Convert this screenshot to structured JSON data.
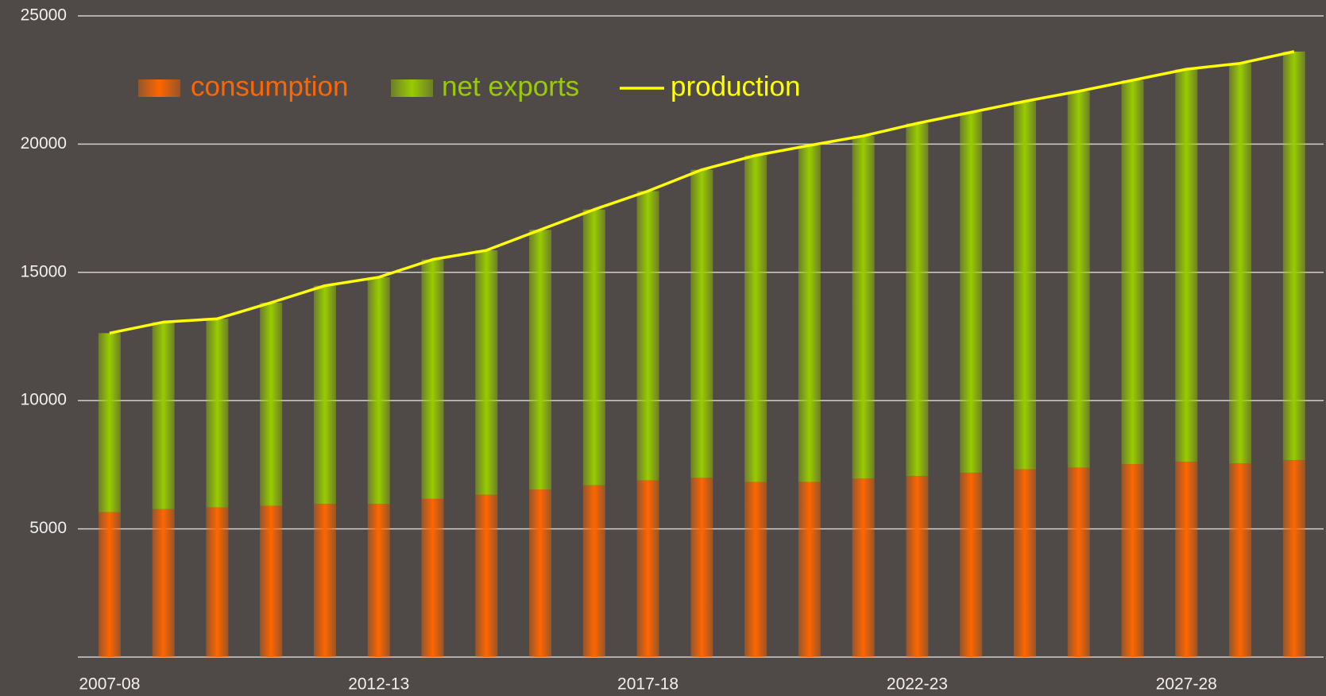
{
  "chart_data": {
    "type": "bar",
    "stacked": true,
    "categories": [
      "2007-08",
      null,
      null,
      null,
      null,
      "2012-13",
      null,
      null,
      null,
      null,
      "2017-18",
      null,
      null,
      null,
      null,
      "2022-23",
      null,
      null,
      null,
      null,
      "2027-28",
      null,
      null
    ],
    "series": [
      {
        "name": "consumption",
        "color": "#ff6600",
        "type": "bar",
        "values": [
          5650,
          5770,
          5840,
          5900,
          5970,
          5970,
          6170,
          6330,
          6530,
          6700,
          6890,
          6990,
          6830,
          6830,
          6960,
          7060,
          7190,
          7320,
          7390,
          7520,
          7620,
          7550,
          7680
        ]
      },
      {
        "name": "net exports",
        "color": "#99cc00",
        "type": "bar",
        "values": [
          6980,
          7290,
          7350,
          7920,
          8510,
          8840,
          9330,
          9530,
          10130,
          10750,
          11280,
          12010,
          12730,
          13120,
          13360,
          13750,
          14050,
          14350,
          14670,
          14970,
          15300,
          15600,
          15930
        ]
      },
      {
        "name": "production",
        "color": "#ffff00",
        "type": "line",
        "values": [
          12630,
          13060,
          13190,
          13820,
          14480,
          14810,
          15500,
          15860,
          16660,
          17450,
          18170,
          19000,
          19560,
          19950,
          20320,
          20810,
          21240,
          21670,
          22060,
          22490,
          22920,
          23150,
          23610
        ]
      }
    ],
    "ylim": [
      0,
      25000
    ],
    "yticks": [
      5000,
      10000,
      15000,
      20000,
      25000
    ],
    "grid": true,
    "legend": "top-left"
  }
}
